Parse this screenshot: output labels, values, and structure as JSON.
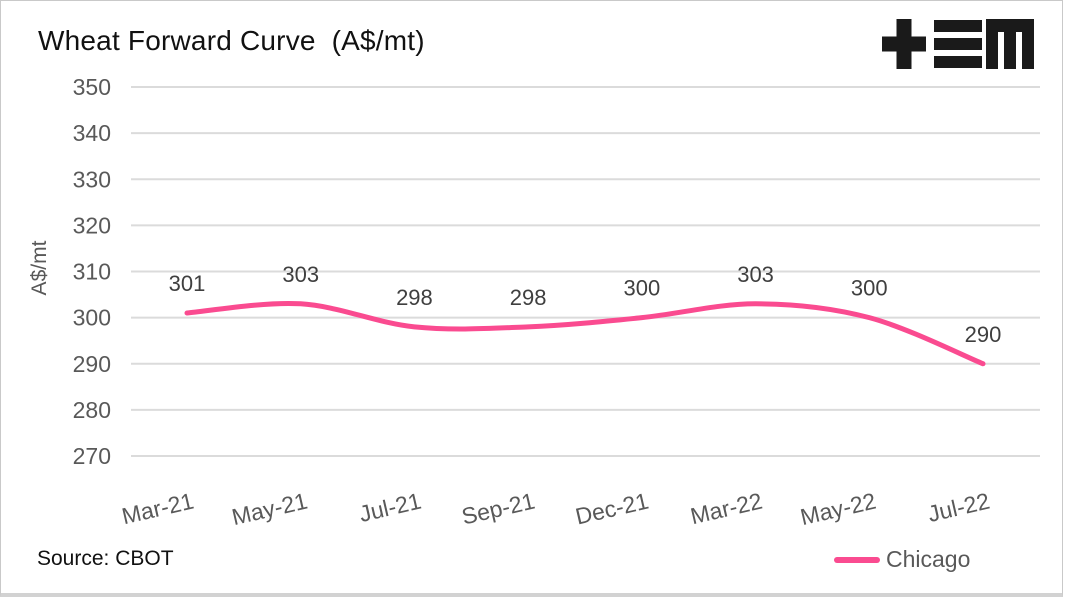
{
  "header": {
    "title": "Wheat Forward Curve  (A$/mt)",
    "logo_name": "tem-logo"
  },
  "footer": {
    "source": "Source: CBOT"
  },
  "legend": {
    "label": "Chicago"
  },
  "colors": {
    "accent_pink": "#FA4B90",
    "grid": "#DBDBDB",
    "axis_text": "#595959",
    "data_label_text": "#3F3F3F",
    "title_text": "#111111",
    "logo_black": "#1A1A1A"
  },
  "chart_data": {
    "type": "line",
    "title": "Wheat Forward Curve  (A$/mt)",
    "categories": [
      "Mar-21",
      "May-21",
      "Jul-21",
      "Sep-21",
      "Dec-21",
      "Mar-22",
      "May-22",
      "Jul-22"
    ],
    "series": [
      {
        "name": "Chicago",
        "values": [
          301,
          303,
          298,
          298,
          300,
          303,
          300,
          290
        ],
        "color": "#FA4B90"
      }
    ],
    "xlabel": "",
    "ylabel": "A$/mt",
    "ylim": [
      270,
      350
    ],
    "ytick_step": 10,
    "yticks": [
      270,
      280,
      290,
      300,
      310,
      320,
      330,
      340,
      350
    ],
    "grid": "horizontal",
    "legend_position": "bottom-right",
    "data_labels": true,
    "line_style": "smooth",
    "source": "Source: CBOT"
  }
}
